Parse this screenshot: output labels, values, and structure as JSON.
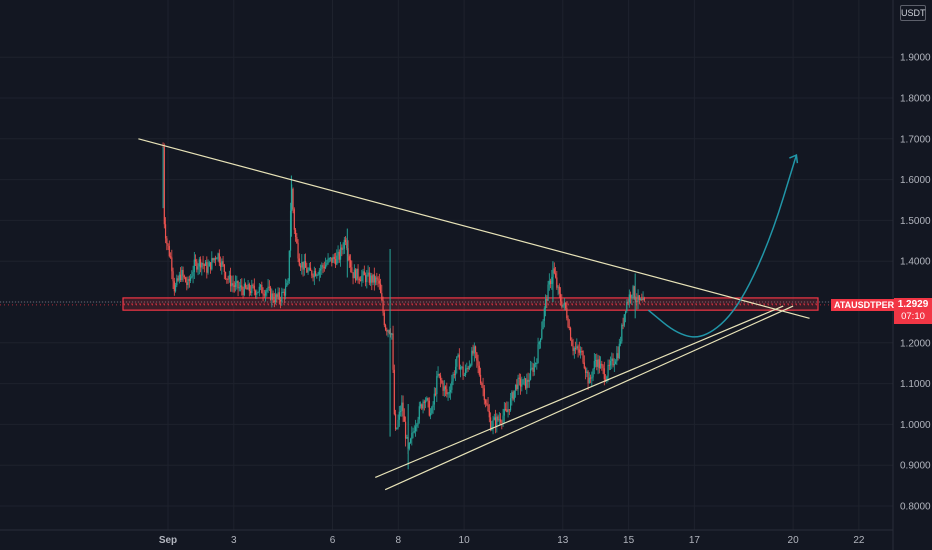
{
  "currency": "USDT",
  "symbol": "ATAUSDTPERP",
  "last_price": "1.2929",
  "countdown": "07:10",
  "colors": {
    "background": "#131722",
    "up": "#26a69a",
    "down": "#ef5350",
    "trendline": "#e8e3b8",
    "zone": "#f23645",
    "projection": "#2196a8",
    "text": "#b2b5be"
  },
  "chart_data": {
    "type": "candlestick",
    "ylim": [
      0.75,
      2.0
    ],
    "y_ticks": [
      "0.8000",
      "0.9000",
      "1.0000",
      "1.1000",
      "1.2000",
      "1.3000",
      "1.4000",
      "1.5000",
      "1.6000",
      "1.7000",
      "1.8000",
      "1.9000"
    ],
    "x_ticks": [
      {
        "label": "Sep",
        "day": 1
      },
      {
        "label": "3",
        "day": 3
      },
      {
        "label": "6",
        "day": 6
      },
      {
        "label": "8",
        "day": 8
      },
      {
        "label": "10",
        "day": 10
      },
      {
        "label": "13",
        "day": 13
      },
      {
        "label": "15",
        "day": 15
      },
      {
        "label": "17",
        "day": 17
      },
      {
        "label": "20",
        "day": 20
      },
      {
        "label": "22",
        "day": 22
      }
    ],
    "price_path": [
      [
        0.85,
        1.68
      ],
      [
        0.86,
        1.52
      ],
      [
        0.95,
        1.45
      ],
      [
        1.1,
        1.4
      ],
      [
        1.2,
        1.33
      ],
      [
        1.4,
        1.37
      ],
      [
        1.6,
        1.34
      ],
      [
        1.8,
        1.39
      ],
      [
        2.0,
        1.4
      ],
      [
        2.2,
        1.38
      ],
      [
        2.5,
        1.42
      ],
      [
        2.8,
        1.36
      ],
      [
        3.0,
        1.34
      ],
      [
        3.3,
        1.33
      ],
      [
        3.6,
        1.33
      ],
      [
        4.0,
        1.33
      ],
      [
        4.2,
        1.31
      ],
      [
        4.4,
        1.31
      ],
      [
        4.65,
        1.34
      ],
      [
        4.75,
        1.59
      ],
      [
        4.85,
        1.47
      ],
      [
        5.0,
        1.4
      ],
      [
        5.3,
        1.37
      ],
      [
        5.6,
        1.38
      ],
      [
        5.9,
        1.4
      ],
      [
        6.2,
        1.41
      ],
      [
        6.4,
        1.46
      ],
      [
        6.6,
        1.37
      ],
      [
        7.0,
        1.36
      ],
      [
        7.4,
        1.35
      ],
      [
        7.6,
        1.24
      ],
      [
        7.8,
        1.23
      ],
      [
        7.9,
        0.97
      ],
      [
        8.1,
        1.05
      ],
      [
        8.3,
        0.93
      ],
      [
        8.5,
        1.0
      ],
      [
        8.8,
        1.07
      ],
      [
        9.0,
        1.02
      ],
      [
        9.2,
        1.12
      ],
      [
        9.5,
        1.07
      ],
      [
        9.8,
        1.16
      ],
      [
        10.0,
        1.12
      ],
      [
        10.3,
        1.18
      ],
      [
        10.6,
        1.08
      ],
      [
        10.8,
        1.0
      ],
      [
        11.0,
        1.01
      ],
      [
        11.3,
        1.03
      ],
      [
        11.6,
        1.1
      ],
      [
        11.9,
        1.1
      ],
      [
        12.2,
        1.16
      ],
      [
        12.5,
        1.31
      ],
      [
        12.7,
        1.38
      ],
      [
        12.9,
        1.31
      ],
      [
        13.1,
        1.28
      ],
      [
        13.3,
        1.19
      ],
      [
        13.6,
        1.17
      ],
      [
        13.8,
        1.1
      ],
      [
        14.0,
        1.16
      ],
      [
        14.3,
        1.12
      ],
      [
        14.5,
        1.15
      ],
      [
        14.7,
        1.18
      ],
      [
        14.9,
        1.29
      ],
      [
        15.1,
        1.33
      ],
      [
        15.3,
        1.3
      ],
      [
        15.5,
        1.2929
      ]
    ],
    "zone": {
      "low": 1.28,
      "high": 1.31
    },
    "trendlines": [
      {
        "name": "upper",
        "from": [
          0.1,
          1.7
        ],
        "to": [
          20.5,
          1.26
        ]
      },
      {
        "name": "lower-1",
        "from": [
          7.3,
          0.87
        ],
        "to": [
          19.7,
          1.29
        ]
      },
      {
        "name": "lower-2",
        "from": [
          7.6,
          0.84
        ],
        "to": [
          20.0,
          1.29
        ]
      }
    ],
    "projection": [
      [
        15.6,
        1.28
      ],
      [
        16.5,
        1.22
      ],
      [
        17.3,
        1.21
      ],
      [
        18.3,
        1.28
      ],
      [
        19.3,
        1.45
      ],
      [
        20.1,
        1.66
      ]
    ],
    "dotted_level": 1.3,
    "last_price": 1.2929
  }
}
